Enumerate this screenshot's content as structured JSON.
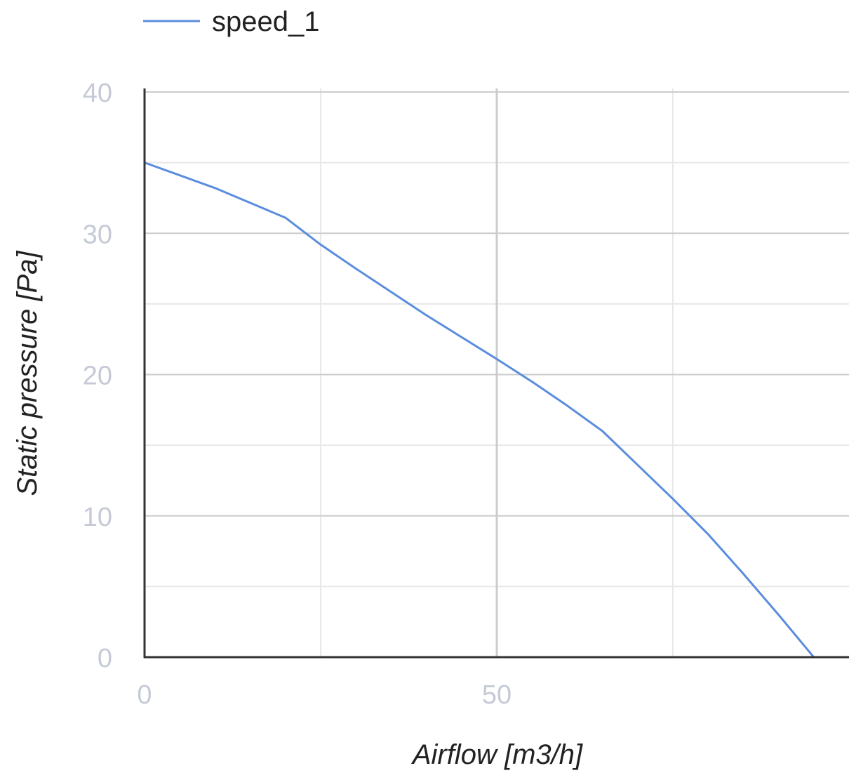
{
  "chart_data": {
    "type": "line",
    "title": "",
    "xlabel": "Airflow [m3/h]",
    "ylabel": "Static pressure [Pa]",
    "xlim": [
      0,
      100
    ],
    "ylim": [
      0,
      40
    ],
    "x_ticks": [
      "0",
      "50"
    ],
    "x_tick_values": [
      0,
      50
    ],
    "x_minor_gridlines": [
      25,
      75
    ],
    "y_ticks": [
      "0",
      "10",
      "20",
      "30",
      "40"
    ],
    "y_tick_values": [
      0,
      10,
      20,
      30,
      40
    ],
    "y_minor_gridlines": [
      5,
      15,
      25,
      35
    ],
    "grid": true,
    "legend_position": "top",
    "series": [
      {
        "name": "speed_1",
        "color": "#5b8dde",
        "x": [
          0,
          10,
          20,
          25,
          30,
          40,
          50,
          55,
          60,
          65,
          70,
          75,
          80,
          85,
          90,
          95
        ],
        "y": [
          35,
          33.2,
          31.1,
          29.2,
          27.5,
          24.2,
          21.1,
          19.5,
          17.8,
          16.0,
          13.6,
          11.2,
          8.7,
          5.9,
          3.0,
          0
        ]
      }
    ]
  },
  "colors": {
    "axis": "#333333",
    "major_grid": "#cccccc",
    "minor_grid": "#e8e8e8",
    "tick_text": "#c5cad6",
    "title_text": "#222222"
  }
}
